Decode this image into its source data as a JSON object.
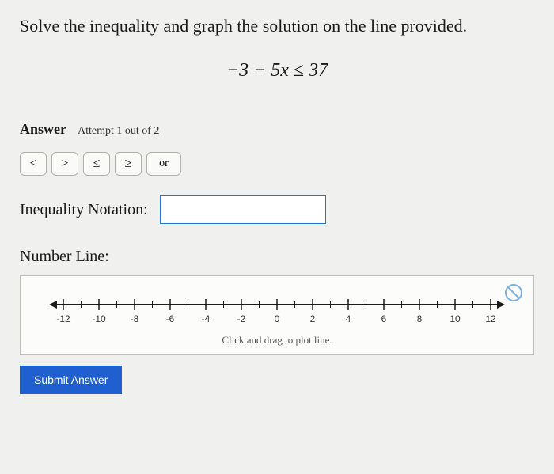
{
  "question": "Solve the inequality and graph the solution on the line provided.",
  "equation": "−3 − 5x ≤ 37",
  "answer_label": "Answer",
  "attempt_text": "Attempt 1 out of 2",
  "operators": {
    "lt": "<",
    "gt": ">",
    "le": "≤",
    "ge": "≥",
    "or": "or"
  },
  "notation_label": "Inequality Notation:",
  "notation_value": "",
  "numline_label": "Number Line:",
  "numline": {
    "type": "numberline",
    "min": -12,
    "max": 12,
    "major_step": 2,
    "minor_step": 1,
    "tick_labels": [
      -12,
      -10,
      -8,
      -6,
      -4,
      -2,
      0,
      2,
      4,
      6,
      8,
      10,
      12
    ],
    "axis_color": "#1a1a1a",
    "tick_color": "#1a1a1a",
    "label_fontsize": 12,
    "label_color": "#333333",
    "background": "#fcfcfa",
    "hint": "Click and drag to plot line."
  },
  "submit_label": "Submit Answer",
  "colors": {
    "button_bg": "#1f5fd0",
    "button_fg": "#ffffff",
    "input_border": "#2176c7",
    "op_border": "#b0b0a8",
    "cursor_ring": "#7ab0e0"
  }
}
